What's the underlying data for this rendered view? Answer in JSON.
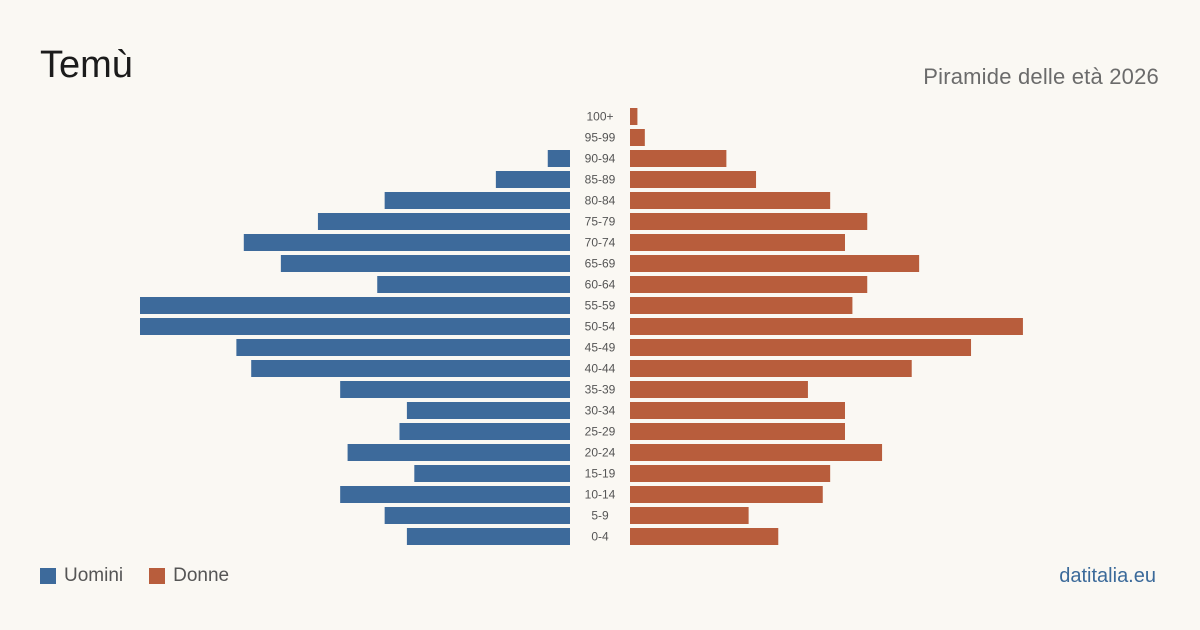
{
  "header": {
    "title": "Temù",
    "subtitle": "Piramide delle età 2026"
  },
  "legend": {
    "men_label": "Uomini",
    "women_label": "Donne"
  },
  "footer": {
    "source": "datitalia.eu"
  },
  "colors": {
    "men": "#3d6a9b",
    "women": "#b85d3c"
  },
  "chart_data": {
    "type": "bar",
    "orientation": "horizontal-pyramid",
    "categories": [
      "100+",
      "95-99",
      "90-94",
      "85-89",
      "80-84",
      "75-79",
      "70-74",
      "65-69",
      "60-64",
      "55-59",
      "50-54",
      "45-49",
      "40-44",
      "35-39",
      "30-34",
      "25-29",
      "20-24",
      "15-19",
      "10-14",
      "5-9",
      "0-4"
    ],
    "series": [
      {
        "name": "Uomini",
        "values": [
          0,
          0,
          3,
          10,
          25,
          34,
          44,
          39,
          26,
          58,
          58,
          45,
          43,
          31,
          22,
          23,
          30,
          21,
          31,
          25,
          22
        ]
      },
      {
        "name": "Donne",
        "values": [
          1,
          2,
          13,
          17,
          27,
          32,
          29,
          39,
          32,
          30,
          53,
          46,
          38,
          24,
          29,
          29,
          34,
          27,
          26,
          16,
          20
        ]
      }
    ],
    "xlim": [
      0,
      58
    ],
    "grid": false,
    "legend_position": "bottom-left"
  }
}
